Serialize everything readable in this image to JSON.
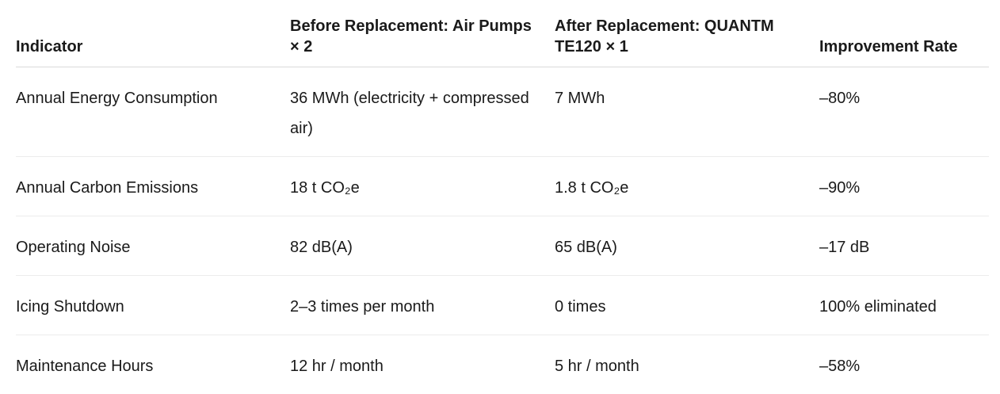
{
  "table": {
    "headers": [
      "Indicator",
      "Before Replacement: Air Pumps × 2",
      "After Replacement: QUANTM TE120 × 1",
      "Improvement Rate"
    ],
    "rows": [
      [
        "Annual Energy Consumption",
        "36 MWh (electricity + compressed air)",
        "7 MWh",
        "–80%"
      ],
      [
        "Annual Carbon Emissions",
        "18 t CO₂e",
        "1.8 t CO₂e",
        "–90%"
      ],
      [
        "Operating Noise",
        "82 dB(A)",
        "65 dB(A)",
        "–17 dB"
      ],
      [
        "Icing Shutdown",
        "2–3 times per month",
        "0 times",
        "100% eliminated"
      ],
      [
        "Maintenance Hours",
        "12 hr / month",
        "5 hr / month",
        "–58%"
      ]
    ]
  }
}
